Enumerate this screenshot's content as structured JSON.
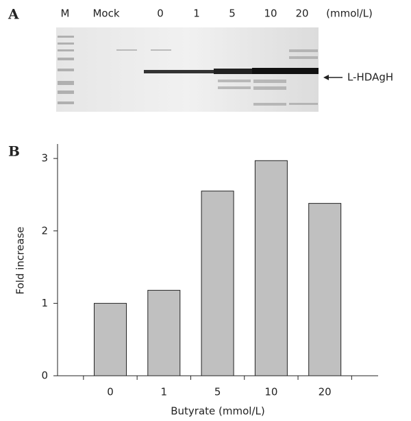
{
  "panel_a": {
    "label": "A",
    "lanes": [
      "M",
      "Mock",
      "0",
      "1",
      "5",
      "10",
      "20"
    ],
    "unit": "(mmol/L)",
    "band_label": "L-HDAgH"
  },
  "panel_b_label": "B",
  "chart_data": {
    "type": "bar",
    "categories": [
      "0",
      "1",
      "5",
      "10",
      "20"
    ],
    "values": [
      1.0,
      1.18,
      2.55,
      2.97,
      2.38
    ],
    "color": "#c0c0c0",
    "x_label": "Butyrate (mmol/L)",
    "y_label": "Fold increase",
    "ylim": [
      0,
      3.2
    ],
    "yticks": [
      0,
      1,
      2,
      3
    ],
    "grid": false
  }
}
